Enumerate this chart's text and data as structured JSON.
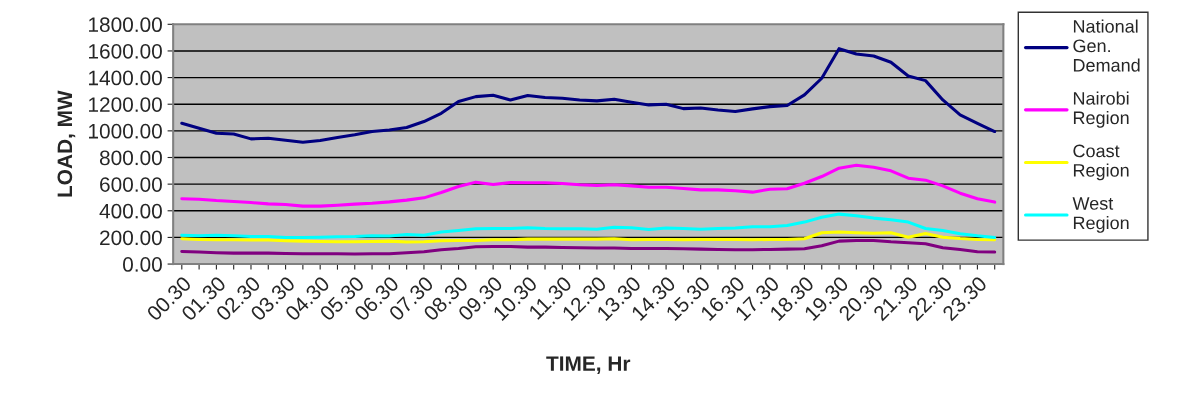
{
  "chart_data": {
    "type": "line",
    "xlabel": "TIME, Hr",
    "ylabel": "LOAD, MW",
    "categories": [
      "00.30",
      null,
      "01.30",
      null,
      "02.30",
      null,
      "03.30",
      null,
      "04.30",
      null,
      "05.30",
      null,
      "06.30",
      null,
      "07.30",
      null,
      "08.30",
      null,
      "09.30",
      null,
      "10.30",
      null,
      "11.30",
      null,
      "12.30",
      null,
      "13.30",
      null,
      "14.30",
      null,
      "15.30",
      null,
      "16.30",
      null,
      "17.30",
      null,
      "18.30",
      null,
      "19.30",
      null,
      "20.30",
      null,
      "21.30",
      null,
      "22.30",
      null,
      "23.30",
      null
    ],
    "series": [
      {
        "name": "National Gen. Demand",
        "color": "#000080",
        "values": [
          1057,
          1020,
          982,
          977,
          940,
          945,
          930,
          915,
          927,
          950,
          970,
          995,
          1007,
          1025,
          1070,
          1132,
          1220,
          1257,
          1267,
          1232,
          1265,
          1250,
          1245,
          1232,
          1225,
          1237,
          1215,
          1195,
          1200,
          1167,
          1172,
          1157,
          1145,
          1165,
          1182,
          1190,
          1270,
          1395,
          1617,
          1577,
          1562,
          1515,
          1412,
          1377,
          1232,
          1120,
          1057,
          995
        ]
      },
      {
        "name": "Nairobi Region",
        "color": "#ff00ff",
        "values": [
          490,
          487,
          477,
          470,
          462,
          452,
          447,
          435,
          435,
          442,
          450,
          457,
          467,
          480,
          497,
          537,
          582,
          615,
          597,
          612,
          610,
          610,
          605,
          595,
          590,
          595,
          587,
          577,
          577,
          567,
          557,
          557,
          550,
          540,
          562,
          565,
          607,
          657,
          720,
          742,
          727,
          700,
          645,
          630,
          587,
          532,
          490,
          465
        ]
      },
      {
        "name": "Coast Region",
        "color": "#ffff00",
        "values": [
          190,
          185,
          182,
          182,
          180,
          180,
          175,
          172,
          170,
          167,
          167,
          170,
          172,
          165,
          167,
          175,
          177,
          177,
          182,
          182,
          187,
          187,
          187,
          187,
          187,
          190,
          182,
          185,
          185,
          182,
          185,
          185,
          185,
          182,
          185,
          185,
          190,
          235,
          240,
          235,
          232,
          235,
          202,
          230,
          202,
          192,
          185,
          182
        ]
      },
      {
        "name": "West Region",
        "color": "#00ffff",
        "values": [
          217,
          212,
          217,
          212,
          207,
          207,
          200,
          200,
          202,
          205,
          207,
          212,
          210,
          222,
          217,
          240,
          252,
          265,
          267,
          267,
          272,
          267,
          265,
          265,
          262,
          277,
          272,
          260,
          270,
          267,
          262,
          267,
          270,
          280,
          280,
          290,
          315,
          352,
          375,
          362,
          345,
          332,
          315,
          267,
          252,
          227,
          212,
          200
        ]
      },
      {
        "color": "#800080",
        "values": [
          95,
          90,
          85,
          82,
          82,
          82,
          80,
          77,
          77,
          77,
          75,
          77,
          77,
          85,
          92,
          107,
          117,
          130,
          132,
          132,
          127,
          127,
          125,
          122,
          120,
          120,
          117,
          117,
          117,
          115,
          112,
          110,
          107,
          107,
          110,
          112,
          115,
          137,
          172,
          177,
          177,
          167,
          160,
          152,
          122,
          110,
          92,
          90
        ]
      }
    ],
    "ylim": [
      0,
      1800
    ],
    "yticks": [
      {
        "value": 0,
        "label": "0.00"
      },
      {
        "value": 200,
        "label": "200.00"
      },
      {
        "value": 400,
        "label": "400.00"
      },
      {
        "value": 600,
        "label": "600.00"
      },
      {
        "value": 800,
        "label": "800.00"
      },
      {
        "value": 1000,
        "label": "1000.00"
      },
      {
        "value": 1200,
        "label": "1200.00"
      },
      {
        "value": 1400,
        "label": "1400.00"
      },
      {
        "value": 1600,
        "label": "1600.00"
      },
      {
        "value": 1800,
        "label": "1800.00"
      }
    ],
    "grid": "y",
    "legend": "right",
    "marker": "none",
    "line_style": "solid"
  }
}
